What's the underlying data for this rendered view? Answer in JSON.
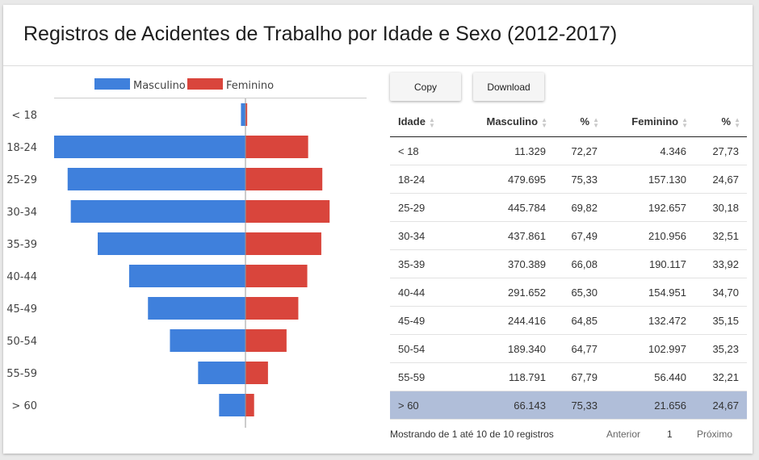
{
  "title": "Registros de Acidentes de Trabalho por Idade e Sexo (2012-2017)",
  "chart_data": {
    "type": "bar",
    "orientation": "horizontal-diverging",
    "categories": [
      "< 18",
      "18-24",
      "25-29",
      "30-34",
      "35-39",
      "40-44",
      "45-49",
      "50-54",
      "55-59",
      "> 60"
    ],
    "series": [
      {
        "name": "Masculino",
        "color": "#3f80dc",
        "values": [
          11329,
          479695,
          445784,
          437861,
          370389,
          291652,
          244416,
          189340,
          118791,
          66143
        ]
      },
      {
        "name": "Feminino",
        "color": "#d9453c",
        "values": [
          4346,
          157130,
          192657,
          210956,
          190117,
          154951,
          132472,
          102997,
          56440,
          21656
        ]
      }
    ],
    "legend": "top-center",
    "grid": false
  },
  "buttons": {
    "copy": "Copy",
    "download": "Download"
  },
  "table": {
    "headers": [
      "Idade",
      "Masculino",
      "%",
      "Feminino",
      "%"
    ],
    "rows": [
      [
        "< 18",
        "11.329",
        "72,27",
        "4.346",
        "27,73"
      ],
      [
        "18-24",
        "479.695",
        "75,33",
        "157.130",
        "24,67"
      ],
      [
        "25-29",
        "445.784",
        "69,82",
        "192.657",
        "30,18"
      ],
      [
        "30-34",
        "437.861",
        "67,49",
        "210.956",
        "32,51"
      ],
      [
        "35-39",
        "370.389",
        "66,08",
        "190.117",
        "33,92"
      ],
      [
        "40-44",
        "291.652",
        "65,30",
        "154.951",
        "34,70"
      ],
      [
        "45-49",
        "244.416",
        "64,85",
        "132.472",
        "35,15"
      ],
      [
        "50-54",
        "189.340",
        "64,77",
        "102.997",
        "35,23"
      ],
      [
        "55-59",
        "118.791",
        "67,79",
        "56.440",
        "32,21"
      ],
      [
        "> 60",
        "66.143",
        "75,33",
        "21.656",
        "24,67"
      ]
    ],
    "selected_row_index": 9,
    "selected_color": "#b0bed9"
  },
  "footer": {
    "info": "Mostrando de 1 até 10 de 10 registros",
    "prev": "Anterior",
    "page": "1",
    "next": "Próximo"
  }
}
